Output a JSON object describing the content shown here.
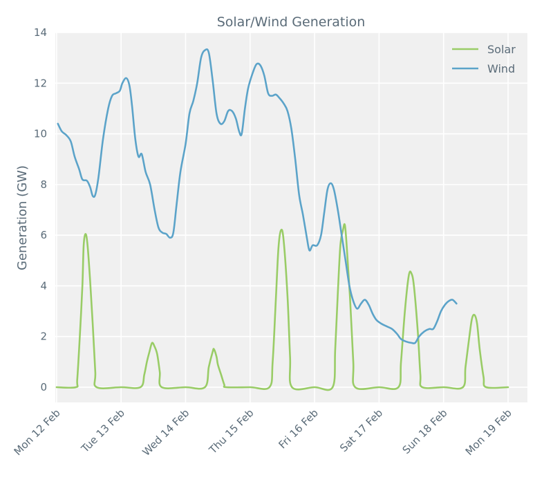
{
  "chart_data": {
    "type": "line",
    "title": "Solar/Wind Generation",
    "xlabel": "",
    "ylabel": "Generation (GW)",
    "ylim": [
      -0.6,
      14
    ],
    "xlim": [
      -0.02,
      7.3
    ],
    "yticks": [
      0,
      2,
      4,
      6,
      8,
      10,
      12,
      14
    ],
    "xtick_positions": [
      0,
      1,
      2,
      3,
      4,
      5,
      6,
      7
    ],
    "xtick_labels": [
      "Mon 12 Feb",
      "Tue 13 Feb",
      "Wed 14 Feb",
      "Thu 15 Feb",
      "Fri 16 Feb",
      "Sat 17 Feb",
      "Sun 18 Feb",
      "Mon 19 Feb"
    ],
    "x_unit": "days since Mon 12 Feb 00:00",
    "grid": true,
    "legend_position": "top-right",
    "series": [
      {
        "name": "Solar",
        "color": "#99cc66",
        "points": [
          [
            0,
            0
          ],
          [
            0.3,
            0
          ],
          [
            0.32,
            0.3
          ],
          [
            0.36,
            2
          ],
          [
            0.4,
            4
          ],
          [
            0.42,
            5.6
          ],
          [
            0.45,
            6.05
          ],
          [
            0.48,
            5.6
          ],
          [
            0.52,
            4.2
          ],
          [
            0.56,
            2.5
          ],
          [
            0.6,
            0.6
          ],
          [
            0.62,
            0
          ],
          [
            1,
            0
          ],
          [
            1.3,
            0
          ],
          [
            1.36,
            0.5
          ],
          [
            1.4,
            1
          ],
          [
            1.44,
            1.4
          ],
          [
            1.48,
            1.75
          ],
          [
            1.52,
            1.6
          ],
          [
            1.56,
            1.3
          ],
          [
            1.6,
            0.6
          ],
          [
            1.63,
            0
          ],
          [
            2,
            0
          ],
          [
            2.3,
            0
          ],
          [
            2.36,
            0.8
          ],
          [
            2.42,
            1.4
          ],
          [
            2.44,
            1.5
          ],
          [
            2.48,
            1.2
          ],
          [
            2.5,
            0.9
          ],
          [
            2.55,
            0.5
          ],
          [
            2.6,
            0.1
          ],
          [
            2.63,
            0
          ],
          [
            3,
            0
          ],
          [
            3.3,
            0
          ],
          [
            3.35,
            1
          ],
          [
            3.4,
            3.5
          ],
          [
            3.44,
            5.5
          ],
          [
            3.48,
            6.2
          ],
          [
            3.52,
            5.8
          ],
          [
            3.58,
            3.6
          ],
          [
            3.62,
            1.2
          ],
          [
            3.65,
            0
          ],
          [
            4,
            0
          ],
          [
            4.28,
            0
          ],
          [
            4.32,
            1.5
          ],
          [
            4.36,
            3.7
          ],
          [
            4.4,
            5.6
          ],
          [
            4.44,
            6.2
          ],
          [
            4.47,
            6.4
          ],
          [
            4.5,
            5.5
          ],
          [
            4.55,
            3.5
          ],
          [
            4.6,
            1
          ],
          [
            4.63,
            0
          ],
          [
            5,
            0
          ],
          [
            5.3,
            0
          ],
          [
            5.34,
            1
          ],
          [
            5.4,
            3
          ],
          [
            5.46,
            4.4
          ],
          [
            5.5,
            4.5
          ],
          [
            5.54,
            4
          ],
          [
            5.6,
            2.2
          ],
          [
            5.64,
            0.5
          ],
          [
            5.67,
            0
          ],
          [
            6,
            0
          ],
          [
            6.3,
            0
          ],
          [
            6.34,
            0.8
          ],
          [
            6.4,
            2
          ],
          [
            6.44,
            2.7
          ],
          [
            6.48,
            2.85
          ],
          [
            6.52,
            2.5
          ],
          [
            6.56,
            1.5
          ],
          [
            6.62,
            0.4
          ],
          [
            6.66,
            0
          ],
          [
            7,
            0
          ]
        ]
      },
      {
        "name": "Wind",
        "color": "#5ba3c9",
        "points": [
          [
            0.02,
            10.4
          ],
          [
            0.08,
            10.1
          ],
          [
            0.15,
            9.95
          ],
          [
            0.22,
            9.7
          ],
          [
            0.28,
            9.1
          ],
          [
            0.35,
            8.6
          ],
          [
            0.4,
            8.2
          ],
          [
            0.47,
            8.15
          ],
          [
            0.52,
            7.9
          ],
          [
            0.56,
            7.55
          ],
          [
            0.6,
            7.6
          ],
          [
            0.65,
            8.3
          ],
          [
            0.72,
            9.8
          ],
          [
            0.8,
            11
          ],
          [
            0.86,
            11.5
          ],
          [
            0.92,
            11.6
          ],
          [
            0.98,
            11.7
          ],
          [
            1.02,
            12
          ],
          [
            1.08,
            12.2
          ],
          [
            1.13,
            11.9
          ],
          [
            1.17,
            11.1
          ],
          [
            1.22,
            9.8
          ],
          [
            1.27,
            9.1
          ],
          [
            1.32,
            9.2
          ],
          [
            1.38,
            8.5
          ],
          [
            1.45,
            8
          ],
          [
            1.52,
            7
          ],
          [
            1.58,
            6.3
          ],
          [
            1.64,
            6.1
          ],
          [
            1.7,
            6.05
          ],
          [
            1.76,
            5.9
          ],
          [
            1.81,
            6.1
          ],
          [
            1.86,
            7.2
          ],
          [
            1.92,
            8.5
          ],
          [
            2,
            9.6
          ],
          [
            2.06,
            10.8
          ],
          [
            2.12,
            11.3
          ],
          [
            2.18,
            12
          ],
          [
            2.24,
            13
          ],
          [
            2.3,
            13.3
          ],
          [
            2.36,
            13.2
          ],
          [
            2.42,
            12.1
          ],
          [
            2.48,
            10.8
          ],
          [
            2.54,
            10.4
          ],
          [
            2.6,
            10.5
          ],
          [
            2.66,
            10.9
          ],
          [
            2.72,
            10.9
          ],
          [
            2.78,
            10.6
          ],
          [
            2.83,
            10.1
          ],
          [
            2.87,
            10
          ],
          [
            2.92,
            11
          ],
          [
            2.97,
            11.8
          ],
          [
            3.04,
            12.4
          ],
          [
            3.1,
            12.75
          ],
          [
            3.16,
            12.7
          ],
          [
            3.22,
            12.3
          ],
          [
            3.28,
            11.6
          ],
          [
            3.34,
            11.5
          ],
          [
            3.4,
            11.55
          ],
          [
            3.46,
            11.4
          ],
          [
            3.52,
            11.2
          ],
          [
            3.58,
            10.9
          ],
          [
            3.64,
            10.2
          ],
          [
            3.7,
            9
          ],
          [
            3.76,
            7.6
          ],
          [
            3.82,
            6.8
          ],
          [
            3.88,
            5.9
          ],
          [
            3.92,
            5.4
          ],
          [
            3.97,
            5.6
          ],
          [
            4.04,
            5.6
          ],
          [
            4.1,
            6
          ],
          [
            4.15,
            6.9
          ],
          [
            4.2,
            7.8
          ],
          [
            4.25,
            8.05
          ],
          [
            4.3,
            7.8
          ],
          [
            4.36,
            7
          ],
          [
            4.42,
            6
          ],
          [
            4.48,
            5
          ],
          [
            4.54,
            4
          ],
          [
            4.6,
            3.4
          ],
          [
            4.66,
            3.1
          ],
          [
            4.72,
            3.3
          ],
          [
            4.78,
            3.45
          ],
          [
            4.84,
            3.25
          ],
          [
            4.9,
            2.9
          ],
          [
            4.96,
            2.65
          ],
          [
            5.04,
            2.5
          ],
          [
            5.12,
            2.4
          ],
          [
            5.2,
            2.3
          ],
          [
            5.28,
            2.1
          ],
          [
            5.34,
            1.9
          ],
          [
            5.42,
            1.8
          ],
          [
            5.5,
            1.75
          ],
          [
            5.56,
            1.75
          ],
          [
            5.62,
            2
          ],
          [
            5.7,
            2.2
          ],
          [
            5.78,
            2.3
          ],
          [
            5.84,
            2.3
          ],
          [
            5.9,
            2.6
          ],
          [
            5.96,
            3
          ],
          [
            6.02,
            3.25
          ],
          [
            6.08,
            3.4
          ],
          [
            6.14,
            3.45
          ],
          [
            6.2,
            3.3
          ]
        ]
      }
    ]
  }
}
